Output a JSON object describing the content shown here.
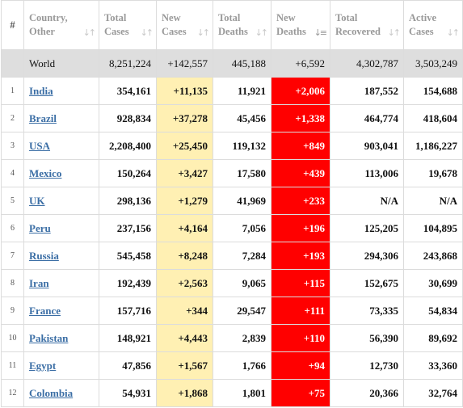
{
  "headers": {
    "rank": "#",
    "country": [
      "Country,",
      "Other"
    ],
    "total_cases": [
      "Total",
      "Cases"
    ],
    "new_cases": [
      "New",
      "Cases"
    ],
    "total_deaths": [
      "Total",
      "Deaths"
    ],
    "new_deaths": [
      "New",
      "Deaths"
    ],
    "total_recovered": [
      "Total",
      "Recovered"
    ],
    "active_cases": [
      "Active",
      "Cases"
    ]
  },
  "world": {
    "country": "World",
    "total_cases": "8,251,224",
    "new_cases": "+142,557",
    "total_deaths": "445,188",
    "new_deaths": "+6,592",
    "total_recovered": "4,302,787",
    "active_cases": "3,503,249"
  },
  "rows": [
    {
      "rank": "1",
      "country": "India",
      "total_cases": "354,161",
      "new_cases": "+11,135",
      "total_deaths": "11,921",
      "new_deaths": "+2,006",
      "total_recovered": "187,552",
      "active_cases": "154,688"
    },
    {
      "rank": "2",
      "country": "Brazil",
      "total_cases": "928,834",
      "new_cases": "+37,278",
      "total_deaths": "45,456",
      "new_deaths": "+1,338",
      "total_recovered": "464,774",
      "active_cases": "418,604"
    },
    {
      "rank": "3",
      "country": "USA",
      "total_cases": "2,208,400",
      "new_cases": "+25,450",
      "total_deaths": "119,132",
      "new_deaths": "+849",
      "total_recovered": "903,041",
      "active_cases": "1,186,227"
    },
    {
      "rank": "4",
      "country": "Mexico",
      "total_cases": "150,264",
      "new_cases": "+3,427",
      "total_deaths": "17,580",
      "new_deaths": "+439",
      "total_recovered": "113,006",
      "active_cases": "19,678"
    },
    {
      "rank": "5",
      "country": "UK",
      "total_cases": "298,136",
      "new_cases": "+1,279",
      "total_deaths": "41,969",
      "new_deaths": "+233",
      "total_recovered": "N/A",
      "active_cases": "N/A"
    },
    {
      "rank": "6",
      "country": "Peru",
      "total_cases": "237,156",
      "new_cases": "+4,164",
      "total_deaths": "7,056",
      "new_deaths": "+196",
      "total_recovered": "125,205",
      "active_cases": "104,895"
    },
    {
      "rank": "7",
      "country": "Russia",
      "total_cases": "545,458",
      "new_cases": "+8,248",
      "total_deaths": "7,284",
      "new_deaths": "+193",
      "total_recovered": "294,306",
      "active_cases": "243,868"
    },
    {
      "rank": "8",
      "country": "Iran",
      "total_cases": "192,439",
      "new_cases": "+2,563",
      "total_deaths": "9,065",
      "new_deaths": "+115",
      "total_recovered": "152,675",
      "active_cases": "30,699"
    },
    {
      "rank": "9",
      "country": "France",
      "total_cases": "157,716",
      "new_cases": "+344",
      "total_deaths": "29,547",
      "new_deaths": "+111",
      "total_recovered": "73,335",
      "active_cases": "54,834"
    },
    {
      "rank": "10",
      "country": "Pakistan",
      "total_cases": "148,921",
      "new_cases": "+4,443",
      "total_deaths": "2,839",
      "new_deaths": "+110",
      "total_recovered": "56,390",
      "active_cases": "89,692"
    },
    {
      "rank": "11",
      "country": "Egypt",
      "total_cases": "47,856",
      "new_cases": "+1,567",
      "total_deaths": "1,766",
      "new_deaths": "+94",
      "total_recovered": "12,730",
      "active_cases": "33,360"
    },
    {
      "rank": "12",
      "country": "Colombia",
      "total_cases": "54,931",
      "new_cases": "+1,868",
      "total_deaths": "1,801",
      "new_deaths": "+75",
      "total_recovered": "20,366",
      "active_cases": "32,764"
    }
  ],
  "icons": {
    "sort": "sort-arrows-icon",
    "sort_active": "sort-descending-icon"
  },
  "colors": {
    "new_cases_bg": "#fff0b3",
    "new_deaths_bg": "#ff0000",
    "world_row_bg": "#dedede",
    "link": "#3b6ea5"
  }
}
